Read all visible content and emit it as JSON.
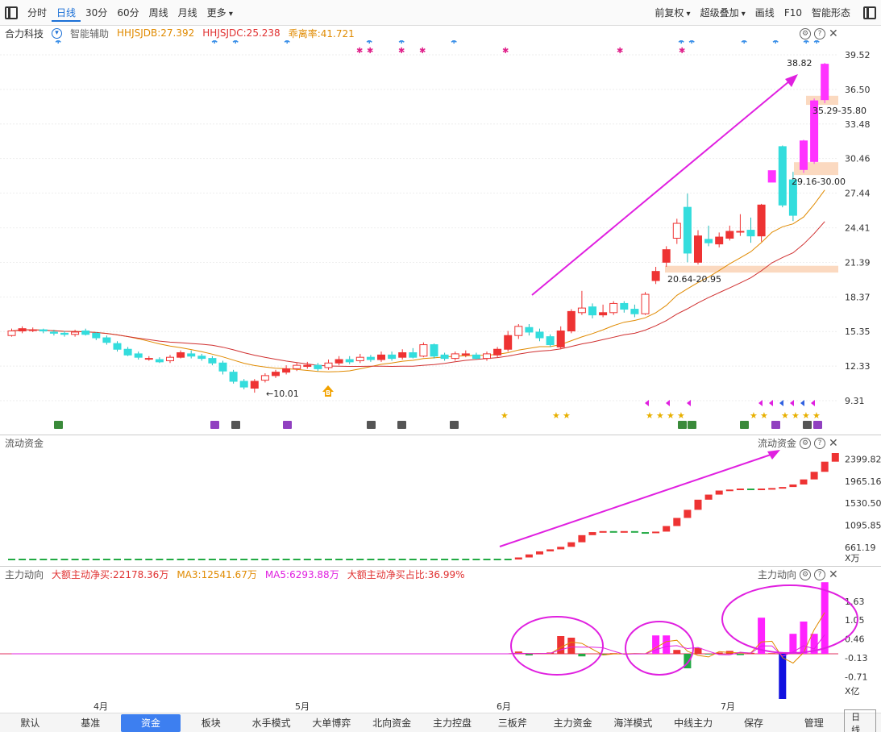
{
  "toolbar": {
    "tabs": [
      "分时",
      "日线",
      "30分",
      "60分",
      "周线",
      "月线",
      "更多"
    ],
    "active_tab": "日线",
    "right_items": [
      "前复权",
      "超级叠加",
      "画线",
      "F10",
      "智能形态"
    ]
  },
  "stock": {
    "name": "合力科技",
    "assist_label": "智能辅助",
    "indicators": [
      {
        "text": "HHJSJDB:27.392",
        "color": "#e08a00"
      },
      {
        "text": "HHJSJDC:25.238",
        "color": "#e03030"
      },
      {
        "text": "乖离率:41.721",
        "color": "#e08a00"
      }
    ]
  },
  "price_axis": [
    "39.52",
    "36.50",
    "33.48",
    "30.46",
    "27.44",
    "24.41",
    "21.39",
    "18.37",
    "15.35",
    "12.33",
    "9.31"
  ],
  "annotations": {
    "high": "38.82",
    "low": "10.01",
    "zone1": "35.29-35.80",
    "zone2": "29.16-30.00",
    "zone3": "20.64-20.95",
    "buy_marker": "B"
  },
  "flow_panel": {
    "title": "流动资金",
    "right_title": "流动资金",
    "axis": [
      "2399.82",
      "1965.16",
      "1530.50",
      "1095.85",
      "661.19"
    ],
    "unit": "X万"
  },
  "main_panel": {
    "title": "主力动向",
    "right_title": "主力动向",
    "indicators": [
      {
        "text": "大额主动净买:22178.36万",
        "color": "#e03030"
      },
      {
        "text": "MA3:12541.67万",
        "color": "#e08a00"
      },
      {
        "text": "MA5:6293.88万",
        "color": "#e020e0"
      },
      {
        "text": "大额主动净买占比:36.99%",
        "color": "#e03030"
      }
    ],
    "axis": [
      "1.63",
      "1.05",
      "0.46",
      "-0.13",
      "-0.71"
    ],
    "unit": "X亿"
  },
  "months": [
    "4月",
    "5月",
    "6月",
    "7月"
  ],
  "bottom_tabs": [
    "默认",
    "基准",
    "资金",
    "板块",
    "水手模式",
    "大单博弈",
    "北向资金",
    "主力控盘",
    "三板斧",
    "主力资金",
    "海洋模式",
    "中线主力",
    "保存",
    "管理"
  ],
  "bottom_active": "资金",
  "day_line_label": "日线",
  "chart_data": {
    "type": "candlestick",
    "price_range": [
      9.31,
      39.52
    ],
    "candles": [
      [
        15.0,
        15.4,
        15.6,
        14.9
      ],
      [
        15.4,
        15.6,
        15.8,
        15.2
      ],
      [
        15.5,
        15.5,
        15.7,
        15.3
      ],
      [
        15.5,
        15.4,
        15.6,
        15.2
      ],
      [
        15.3,
        15.2,
        15.5,
        15.0
      ],
      [
        15.2,
        15.1,
        15.4,
        14.9
      ],
      [
        15.1,
        15.3,
        15.5,
        14.9
      ],
      [
        15.4,
        15.1,
        15.6,
        15.0
      ],
      [
        15.2,
        14.8,
        15.3,
        14.6
      ],
      [
        14.8,
        14.4,
        15.0,
        14.2
      ],
      [
        14.3,
        13.8,
        14.5,
        13.6
      ],
      [
        13.8,
        13.3,
        14.0,
        13.2
      ],
      [
        13.4,
        13.1,
        13.6,
        12.9
      ],
      [
        13.0,
        13.0,
        13.2,
        12.8
      ],
      [
        12.9,
        12.7,
        13.1,
        12.6
      ],
      [
        12.8,
        13.1,
        13.3,
        12.6
      ],
      [
        13.1,
        13.5,
        13.7,
        13.0
      ],
      [
        13.4,
        13.2,
        13.7,
        13.0
      ],
      [
        13.2,
        13.0,
        13.4,
        12.8
      ],
      [
        13.0,
        12.6,
        13.2,
        12.4
      ],
      [
        12.6,
        11.9,
        12.8,
        11.6
      ],
      [
        11.8,
        11.0,
        12.0,
        10.8
      ],
      [
        11.0,
        10.5,
        11.2,
        10.3
      ],
      [
        10.4,
        11.0,
        11.2,
        10.01
      ],
      [
        11.1,
        11.5,
        11.7,
        10.9
      ],
      [
        11.5,
        11.8,
        12.0,
        11.3
      ],
      [
        11.8,
        12.1,
        12.4,
        11.6
      ],
      [
        12.1,
        12.4,
        12.6,
        11.9
      ],
      [
        12.3,
        12.4,
        12.7,
        12.1
      ],
      [
        12.4,
        12.1,
        12.6,
        11.9
      ],
      [
        12.2,
        12.6,
        12.9,
        12.0
      ],
      [
        12.6,
        12.9,
        13.2,
        12.4
      ],
      [
        12.9,
        12.7,
        13.2,
        12.5
      ],
      [
        12.8,
        13.1,
        13.4,
        12.6
      ],
      [
        13.1,
        12.9,
        13.3,
        12.7
      ],
      [
        12.9,
        13.3,
        13.6,
        12.7
      ],
      [
        13.3,
        13.0,
        13.6,
        12.8
      ],
      [
        13.1,
        13.5,
        13.8,
        12.9
      ],
      [
        13.5,
        13.1,
        13.9,
        13.0
      ],
      [
        13.2,
        14.2,
        14.4,
        13.1
      ],
      [
        14.2,
        13.2,
        14.3,
        13.0
      ],
      [
        13.3,
        13.0,
        13.5,
        12.8
      ],
      [
        13.0,
        13.4,
        13.6,
        12.8
      ],
      [
        13.3,
        13.4,
        13.7,
        13.1
      ],
      [
        13.3,
        13.0,
        13.5,
        12.9
      ],
      [
        13.0,
        13.4,
        13.6,
        12.8
      ],
      [
        13.3,
        13.8,
        14.0,
        13.1
      ],
      [
        13.8,
        15.0,
        15.4,
        13.6
      ],
      [
        15.0,
        15.8,
        16.0,
        14.7
      ],
      [
        15.7,
        15.3,
        16.0,
        15.0
      ],
      [
        15.3,
        14.8,
        15.6,
        14.5
      ],
      [
        14.9,
        14.2,
        15.1,
        14.0
      ],
      [
        14.0,
        15.4,
        15.8,
        13.8
      ],
      [
        15.4,
        17.1,
        17.3,
        15.2
      ],
      [
        17.0,
        17.4,
        18.9,
        16.8
      ],
      [
        17.5,
        16.8,
        17.8,
        16.5
      ],
      [
        16.8,
        17.0,
        17.7,
        16.6
      ],
      [
        17.0,
        17.8,
        18.0,
        16.8
      ],
      [
        17.8,
        17.3,
        18.0,
        17.0
      ],
      [
        17.3,
        16.9,
        17.7,
        16.6
      ],
      [
        16.9,
        18.6,
        18.8,
        16.8
      ],
      [
        19.8,
        20.6,
        21.0,
        19.5
      ],
      [
        21.4,
        22.5,
        22.8,
        21.0
      ],
      [
        23.5,
        24.8,
        25.2,
        23.0
      ],
      [
        26.2,
        22.2,
        27.4,
        21.4
      ],
      [
        21.4,
        23.7,
        24.2,
        21.2
      ],
      [
        23.4,
        23.1,
        24.6,
        22.8
      ],
      [
        23.0,
        23.6,
        24.0,
        22.7
      ],
      [
        23.5,
        24.1,
        24.6,
        23.3
      ],
      [
        24.1,
        24.1,
        25.6,
        23.7
      ],
      [
        24.2,
        23.7,
        25.3,
        23.1
      ],
      [
        23.7,
        26.4,
        26.5,
        23.2
      ],
      [
        28.4,
        29.4,
        29.4,
        28.4
      ],
      [
        31.5,
        26.4,
        31.6,
        26.2
      ],
      [
        28.6,
        25.5,
        29.3,
        25.0
      ],
      [
        29.5,
        32.0,
        32.1,
        29.2
      ],
      [
        30.2,
        35.5,
        35.7,
        30.0
      ],
      [
        35.6,
        38.7,
        38.82,
        35.29
      ]
    ],
    "main_bars": [
      0,
      0,
      0,
      0,
      0,
      0,
      0,
      0,
      0,
      0,
      0,
      0,
      0,
      0,
      0,
      0,
      0,
      0,
      0,
      0,
      0,
      0,
      0,
      0,
      0,
      0,
      0,
      0,
      0,
      0,
      0,
      0,
      0,
      0,
      0,
      0,
      0,
      0,
      0,
      0,
      0,
      0,
      0,
      0,
      0,
      0,
      0,
      0,
      0.07,
      -0.05,
      0.02,
      0.04,
      0.55,
      0.5,
      -0.08,
      0.01,
      -0.04,
      0.02,
      0.01,
      0,
      0,
      0.57,
      0.57,
      0.12,
      -0.45,
      0.18,
      -0.02,
      0.04,
      0.09,
      -0.04,
      0.03,
      1.12,
      0.02,
      -1.5,
      0.62,
      1.0,
      0.62,
      2.22
    ],
    "flow_values": [
      420,
      420,
      420,
      420,
      420,
      420,
      420,
      420,
      420,
      420,
      420,
      420,
      420,
      420,
      420,
      420,
      420,
      420,
      420,
      420,
      420,
      420,
      420,
      420,
      420,
      420,
      420,
      420,
      420,
      420,
      420,
      420,
      420,
      420,
      420,
      420,
      420,
      420,
      420,
      420,
      420,
      420,
      420,
      420,
      420,
      420,
      420,
      420,
      460,
      520,
      580,
      620,
      670,
      760,
      900,
      960,
      980,
      970,
      980,
      960,
      940,
      970,
      1080,
      1240,
      1400,
      1600,
      1700,
      1780,
      1800,
      1820,
      1810,
      1820,
      1830,
      1850,
      1900,
      2000,
      2150,
      2350,
      2520
    ]
  }
}
